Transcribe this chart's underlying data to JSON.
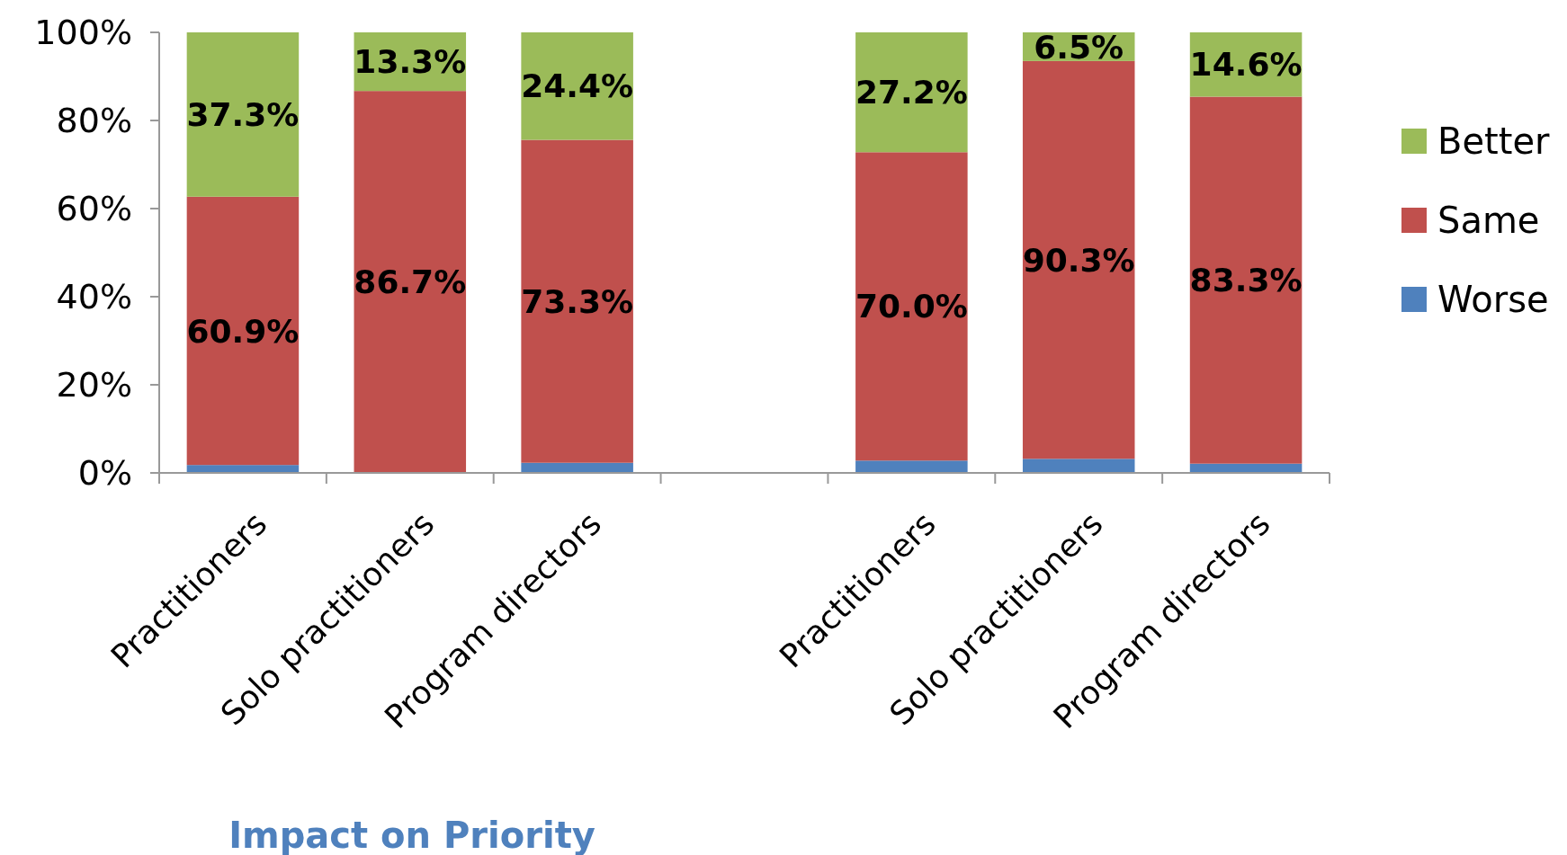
{
  "chart_data": {
    "type": "bar",
    "stacked": true,
    "categories": [
      "Practitioners",
      "Solo practitioners",
      "Program directors",
      null,
      "Practitioners",
      "Solo practitioners",
      "Program directors"
    ],
    "series": [
      {
        "name": "Worse",
        "color": "#4f81bd",
        "values": [
          1.8,
          0,
          2.3,
          null,
          2.8,
          3.2,
          2.1
        ],
        "value_labels": [
          null,
          null,
          null,
          null,
          null,
          null,
          null
        ]
      },
      {
        "name": "Same",
        "color": "#c0504d",
        "values": [
          60.9,
          86.7,
          73.3,
          null,
          70.0,
          90.3,
          83.3
        ],
        "value_labels": [
          "60.9%",
          "86.7%",
          "73.3%",
          null,
          "70.0%",
          "90.3%",
          "83.3%"
        ]
      },
      {
        "name": "Better",
        "color": "#9bbb59",
        "values": [
          37.3,
          13.3,
          24.4,
          null,
          27.2,
          6.5,
          14.6
        ],
        "value_labels": [
          "37.3%",
          "13.3%",
          "24.4%",
          null,
          "27.2%",
          "6.5%",
          "14.6%"
        ]
      }
    ],
    "ylim": [
      0,
      100
    ],
    "yticks": [
      {
        "value": 0,
        "label": "0%"
      },
      {
        "value": 20,
        "label": "20%"
      },
      {
        "value": 40,
        "label": "40%"
      },
      {
        "value": 60,
        "label": "60%"
      },
      {
        "value": 80,
        "label": "80%"
      },
      {
        "value": 100,
        "label": "100%"
      }
    ],
    "grid": false,
    "legend": "right",
    "annotations": [
      "Impact on Priority"
    ]
  }
}
